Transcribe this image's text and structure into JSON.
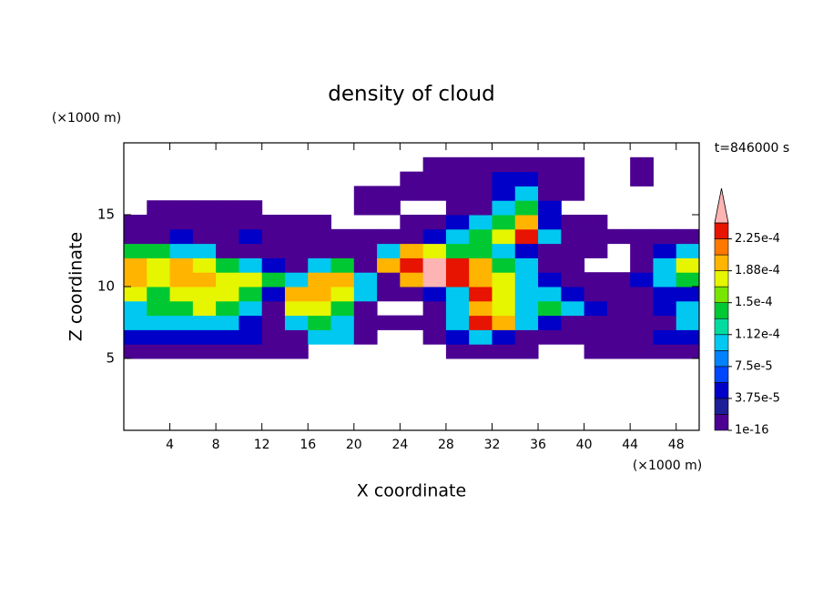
{
  "chart_data": {
    "type": "contour",
    "title": "density of cloud",
    "y_unit": "(×1000 m)",
    "x_unit": "(×1000 m)",
    "time_label": "t=846000 s",
    "xlabel": "X coordinate",
    "ylabel": "Z coordinate",
    "xlim": [
      0,
      50
    ],
    "ylim": [
      0,
      20
    ],
    "xticks": [
      4,
      8,
      12,
      16,
      20,
      24,
      28,
      32,
      36,
      40,
      44,
      48
    ],
    "yticks": [
      5,
      10,
      15
    ],
    "x": [
      1,
      3,
      5,
      7,
      9,
      11,
      13,
      15,
      17,
      19,
      21,
      23,
      25,
      27,
      29,
      31,
      33,
      35,
      37,
      39,
      41,
      43,
      45,
      47,
      49
    ],
    "z": [
      5.5,
      6.5,
      7.5,
      8.5,
      9.5,
      10.5,
      11.5,
      12.5,
      13.5,
      14.5,
      15.5,
      16.5,
      17.5,
      18.5
    ],
    "values": [
      [
        1e-05,
        1e-05,
        1e-05,
        1e-05,
        1e-05,
        1e-05,
        1e-05,
        1e-05,
        null,
        null,
        null,
        null,
        null,
        null,
        1e-05,
        1e-05,
        1e-05,
        1e-05,
        null,
        null,
        1e-05,
        1e-05,
        1e-05,
        1e-05,
        1e-05
      ],
      [
        4.5e-05,
        4.5e-05,
        4.5e-05,
        4.5e-05,
        4.5e-05,
        4.5e-05,
        1e-05,
        1e-05,
        0.0001,
        0.0001,
        1e-05,
        null,
        null,
        1e-05,
        4.5e-05,
        0.0001,
        4.5e-05,
        1e-05,
        1e-05,
        1e-05,
        1e-05,
        1e-05,
        1e-05,
        4.5e-05,
        4.5e-05
      ],
      [
        0.0001,
        0.0001,
        0.0001,
        0.0001,
        0.0001,
        4.5e-05,
        1e-05,
        0.0001,
        0.00014,
        0.0001,
        1e-05,
        1e-05,
        1e-05,
        1e-05,
        0.0001,
        0.00023,
        0.0002,
        0.0001,
        4.5e-05,
        1e-05,
        1e-05,
        1e-05,
        1e-05,
        1e-05,
        0.0001
      ],
      [
        0.0001,
        0.00014,
        0.00014,
        0.00017,
        0.00014,
        0.0001,
        1e-05,
        0.00017,
        0.00017,
        0.00014,
        1e-05,
        null,
        null,
        1e-05,
        0.0001,
        0.0002,
        0.00017,
        0.0001,
        0.00014,
        0.0001,
        4.5e-05,
        1e-05,
        1e-05,
        4.5e-05,
        0.0001
      ],
      [
        0.00017,
        0.00014,
        0.00017,
        0.00017,
        0.00017,
        0.00014,
        4.5e-05,
        0.0002,
        0.0002,
        0.00017,
        0.0001,
        1e-05,
        1e-05,
        4.5e-05,
        0.0001,
        0.00023,
        0.00017,
        0.0001,
        0.0001,
        4.5e-05,
        1e-05,
        1e-05,
        1e-05,
        4.5e-05,
        4.5e-05
      ],
      [
        0.0002,
        0.00017,
        0.0002,
        0.0002,
        0.00017,
        0.00017,
        0.00014,
        0.0001,
        0.0002,
        0.0002,
        0.0001,
        1e-05,
        0.0002,
        0.00025,
        0.00023,
        0.0002,
        0.00017,
        0.0001,
        4.5e-05,
        1e-05,
        1e-05,
        1e-05,
        4.5e-05,
        0.0001,
        0.00014
      ],
      [
        0.0002,
        0.00017,
        0.0002,
        0.00017,
        0.00014,
        0.0001,
        4.5e-05,
        1e-05,
        0.0001,
        0.00014,
        1e-05,
        0.0002,
        0.00023,
        0.00025,
        0.00023,
        0.0002,
        0.00014,
        0.0001,
        1e-05,
        1e-05,
        null,
        null,
        1e-05,
        0.0001,
        0.00017
      ],
      [
        0.00014,
        0.00014,
        0.0001,
        0.0001,
        1e-05,
        1e-05,
        1e-05,
        1e-05,
        1e-05,
        1e-05,
        1e-05,
        0.0001,
        0.0002,
        0.00017,
        0.00014,
        0.00014,
        0.0001,
        4.5e-05,
        1e-05,
        1e-05,
        1e-05,
        null,
        1e-05,
        4.5e-05,
        0.0001
      ],
      [
        1e-05,
        1e-05,
        4.5e-05,
        1e-05,
        1e-05,
        4.5e-05,
        1e-05,
        1e-05,
        1e-05,
        1e-05,
        1e-05,
        1e-05,
        1e-05,
        4.5e-05,
        0.0001,
        0.00014,
        0.00017,
        0.00023,
        0.0001,
        1e-05,
        1e-05,
        1e-05,
        1e-05,
        1e-05,
        1e-05
      ],
      [
        1e-05,
        1e-05,
        1e-05,
        1e-05,
        1e-05,
        1e-05,
        1e-05,
        1e-05,
        1e-05,
        null,
        null,
        null,
        1e-05,
        1e-05,
        4.5e-05,
        0.0001,
        0.00014,
        0.0002,
        4.5e-05,
        1e-05,
        1e-05,
        null,
        null,
        null,
        null
      ],
      [
        null,
        1e-05,
        1e-05,
        1e-05,
        1e-05,
        1e-05,
        null,
        null,
        null,
        null,
        1e-05,
        1e-05,
        null,
        null,
        1e-05,
        1e-05,
        0.0001,
        0.00014,
        4.5e-05,
        null,
        null,
        null,
        null,
        null,
        null
      ],
      [
        null,
        null,
        null,
        null,
        null,
        null,
        null,
        null,
        null,
        null,
        1e-05,
        1e-05,
        1e-05,
        1e-05,
        1e-05,
        1e-05,
        4.5e-05,
        0.0001,
        1e-05,
        1e-05,
        null,
        null,
        null,
        null,
        null
      ],
      [
        null,
        null,
        null,
        null,
        null,
        null,
        null,
        null,
        null,
        null,
        null,
        null,
        1e-05,
        1e-05,
        1e-05,
        1e-05,
        4.5e-05,
        4.5e-05,
        1e-05,
        1e-05,
        null,
        null,
        1e-05,
        null,
        null
      ],
      [
        null,
        null,
        null,
        null,
        null,
        null,
        null,
        null,
        null,
        null,
        null,
        null,
        null,
        1e-05,
        1e-05,
        1e-05,
        1e-05,
        1e-05,
        1e-05,
        1e-05,
        null,
        null,
        1e-05,
        null,
        null
      ]
    ],
    "levels": [
      1e-16,
      1.875e-05,
      3.75e-05,
      5.625e-05,
      7.5e-05,
      9.375e-05,
      0.0001125,
      0.00013125,
      0.00015,
      0.00016875,
      0.0001875,
      0.00020625,
      0.000225,
      0.00024375
    ],
    "colors": [
      "#4b0091",
      "#1e1e96",
      "#0000c8",
      "#0046ff",
      "#0082ff",
      "#00c8f0",
      "#00dca0",
      "#00c832",
      "#78e600",
      "#e6f500",
      "#ffb400",
      "#ff7800",
      "#e61400"
    ],
    "extend_color": "#ffb4b4",
    "colorbar_ticks": [
      1e-16,
      {
        "value": 3.75e-05,
        "label": "3.75e-5"
      },
      {
        "value": 7.5e-05,
        "label": "7.5e-5"
      },
      {
        "value": 0.0001125,
        "label": "1.12e-4"
      },
      {
        "value": 0.00015,
        "label": "1.5e-4"
      },
      {
        "value": 0.0001875,
        "label": "1.88e-4"
      },
      {
        "value": 0.000225,
        "label": "2.25e-4"
      }
    ]
  }
}
